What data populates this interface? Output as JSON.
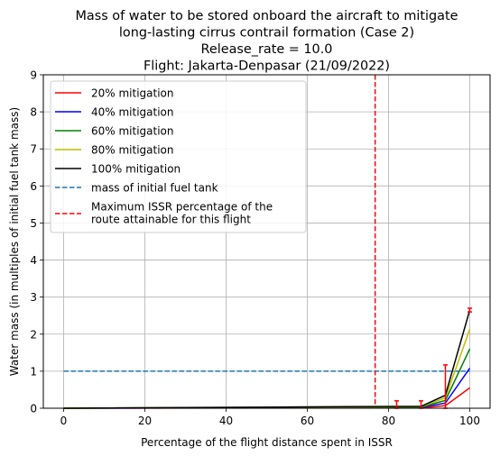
{
  "chart_data": {
    "type": "line",
    "title": [
      "Mass of water to be stored onboard the aircraft to mitigate",
      "long-lasting cirrus contrail formation (Case 2)",
      "Release_rate = 10.0",
      "Flight: Jakarta-Denpasar (21/09/2022)"
    ],
    "xlabel": "Percentage of the flight distance spent in ISSR",
    "ylabel": "Water mass (in multiples of initial fuel tank mass)",
    "xlim": [
      -5,
      105
    ],
    "ylim": [
      0,
      9
    ],
    "xticks": [
      0,
      20,
      40,
      60,
      80,
      100
    ],
    "yticks": [
      0,
      1,
      2,
      3,
      4,
      5,
      6,
      7,
      8,
      9
    ],
    "grid": true,
    "legend_position": "upper-left",
    "x": [
      0,
      82,
      88,
      94,
      100
    ],
    "series": [
      {
        "name": "20% mitigation",
        "color": "#ff0000",
        "style": "solid",
        "values": [
          0,
          0.01,
          0.01,
          0.07,
          0.55
        ]
      },
      {
        "name": "40% mitigation",
        "color": "#0000ff",
        "style": "solid",
        "values": [
          0,
          0.02,
          0.02,
          0.14,
          1.08
        ]
      },
      {
        "name": "60% mitigation",
        "color": "#008000",
        "style": "solid",
        "values": [
          0,
          0.03,
          0.03,
          0.21,
          1.6
        ]
      },
      {
        "name": "80% mitigation",
        "color": "#bfbf00",
        "style": "solid",
        "values": [
          0,
          0.04,
          0.04,
          0.28,
          2.13
        ]
      },
      {
        "name": "100% mitigation",
        "color": "#000000",
        "style": "solid",
        "values": [
          0,
          0.05,
          0.05,
          0.35,
          2.65
        ]
      }
    ],
    "reference_lines": [
      {
        "name": "mass of initial fuel tank",
        "color": "#1f77b4",
        "style": "dashed",
        "orientation": "horizontal",
        "value": 1.0,
        "x_range": [
          0,
          100
        ]
      },
      {
        "name": "Maximum ISSR percentage of the\n route attainable for this flight",
        "color": "#ff0000",
        "style": "dashed",
        "orientation": "vertical",
        "value": 76.7
      }
    ],
    "error_bars": [
      {
        "x": 82,
        "low": 0,
        "high": 0.2
      },
      {
        "x": 88,
        "low": 0,
        "high": 0.2
      },
      {
        "x": 94,
        "low": 0,
        "high": 1.17
      },
      {
        "x": 100,
        "low": 2.6,
        "high": 2.7
      }
    ],
    "error_bar_color": "#ff0000"
  }
}
